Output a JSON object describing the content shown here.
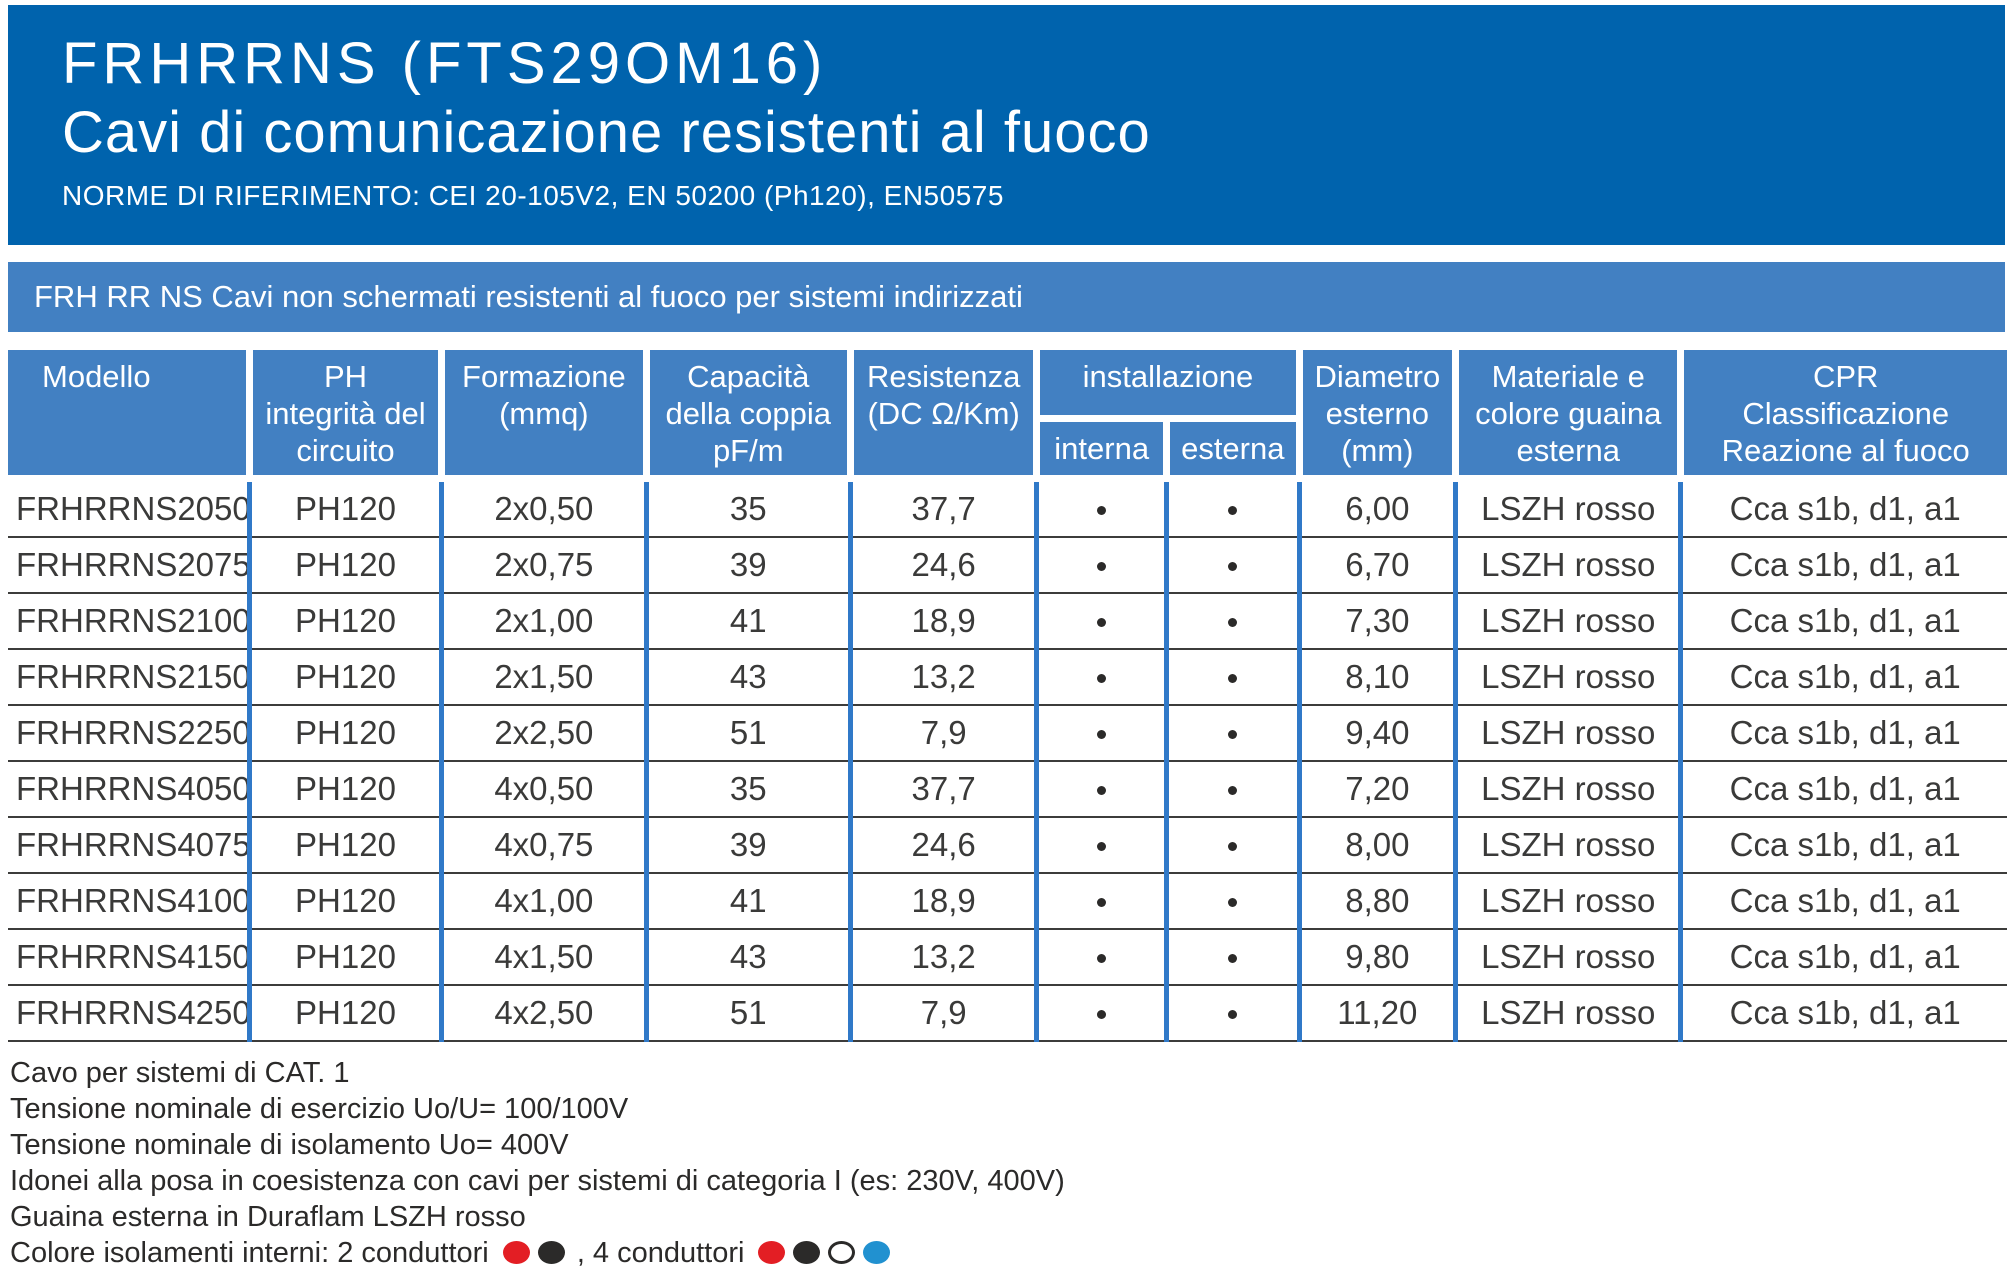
{
  "header": {
    "title": "FRHRRNS (FTS29OM16)",
    "subtitle": "Cavi di comunicazione resistenti al fuoco",
    "norms": "NORME DI RIFERIMENTO: CEI 20-105V2, EN 50200 (Ph120), EN50575"
  },
  "band": {
    "text": "FRH RR NS Cavi non schermati resistenti al fuoco per sistemi indirizzati"
  },
  "table": {
    "headers": {
      "modello": "Modello",
      "ph": "PH\nintegrità del\ncircuito",
      "formazione": "Formazione\n(mmq)",
      "capacita": "Capacità\ndella coppia\npF/m",
      "resistenza": "Resistenza\n(DC Ω/Km)",
      "installazione": "installazione",
      "interna": "interna",
      "esterna": "esterna",
      "diametro": "Diametro\nesterno\n(mm)",
      "materiale": "Materiale e\ncolore guaina\nesterna",
      "cpr": "CPR\nClassificazione\nReazione al fuoco"
    },
    "rows": [
      {
        "modello": "FRHRRNS2050",
        "ph": "PH120",
        "formazione": "2x0,50",
        "capacita": "35",
        "resistenza": "37,7",
        "interna": true,
        "esterna": true,
        "diametro": "6,00",
        "materiale": "LSZH rosso",
        "cpr": "Cca s1b, d1, a1"
      },
      {
        "modello": "FRHRRNS2075",
        "ph": "PH120",
        "formazione": "2x0,75",
        "capacita": "39",
        "resistenza": "24,6",
        "interna": true,
        "esterna": true,
        "diametro": "6,70",
        "materiale": "LSZH rosso",
        "cpr": "Cca s1b, d1, a1"
      },
      {
        "modello": "FRHRRNS2100",
        "ph": "PH120",
        "formazione": "2x1,00",
        "capacita": "41",
        "resistenza": "18,9",
        "interna": true,
        "esterna": true,
        "diametro": "7,30",
        "materiale": "LSZH rosso",
        "cpr": "Cca s1b, d1, a1"
      },
      {
        "modello": "FRHRRNS2150",
        "ph": "PH120",
        "formazione": "2x1,50",
        "capacita": "43",
        "resistenza": "13,2",
        "interna": true,
        "esterna": true,
        "diametro": "8,10",
        "materiale": "LSZH rosso",
        "cpr": "Cca s1b, d1, a1"
      },
      {
        "modello": "FRHRRNS2250",
        "ph": "PH120",
        "formazione": "2x2,50",
        "capacita": "51",
        "resistenza": "7,9",
        "interna": true,
        "esterna": true,
        "diametro": "9,40",
        "materiale": "LSZH rosso",
        "cpr": "Cca s1b, d1, a1"
      },
      {
        "modello": "FRHRRNS4050",
        "ph": "PH120",
        "formazione": "4x0,50",
        "capacita": "35",
        "resistenza": "37,7",
        "interna": true,
        "esterna": true,
        "diametro": "7,20",
        "materiale": "LSZH rosso",
        "cpr": "Cca s1b, d1, a1"
      },
      {
        "modello": "FRHRRNS4075",
        "ph": "PH120",
        "formazione": "4x0,75",
        "capacita": "39",
        "resistenza": "24,6",
        "interna": true,
        "esterna": true,
        "diametro": "8,00",
        "materiale": "LSZH rosso",
        "cpr": "Cca s1b, d1, a1"
      },
      {
        "modello": "FRHRRNS4100",
        "ph": "PH120",
        "formazione": "4x1,00",
        "capacita": "41",
        "resistenza": "18,9",
        "interna": true,
        "esterna": true,
        "diametro": "8,80",
        "materiale": "LSZH rosso",
        "cpr": "Cca s1b, d1, a1"
      },
      {
        "modello": "FRHRRNS4150",
        "ph": "PH120",
        "formazione": "4x1,50",
        "capacita": "43",
        "resistenza": "13,2",
        "interna": true,
        "esterna": true,
        "diametro": "9,80",
        "materiale": "LSZH rosso",
        "cpr": "Cca s1b, d1, a1"
      },
      {
        "modello": "FRHRRNS4250",
        "ph": "PH120",
        "formazione": "4x2,50",
        "capacita": "51",
        "resistenza": "7,9",
        "interna": true,
        "esterna": true,
        "diametro": "11,20",
        "materiale": "LSZH rosso",
        "cpr": "Cca s1b, d1, a1"
      }
    ]
  },
  "notes": {
    "line1": "Cavo per sistemi di CAT. 1",
    "line2": "Tensione nominale di esercizio Uo/U= 100/100V",
    "line3": "Tensione nominale di isolamento Uo= 400V",
    "line4": "Idonei alla posa in coesistenza con cavi per sistemi di categoria I (es: 230V, 400V)",
    "line5": "Guaina esterna in Duraflam LSZH rosso",
    "colors_prefix": "Colore isolamenti interni: 2 conduttori",
    "colors_mid": ", 4 conduttori",
    "dots_2_conduttori": [
      "red",
      "black"
    ],
    "dots_4_conduttori": [
      "red",
      "black",
      "white",
      "blue"
    ]
  },
  "palette": {
    "header_blue": "#0063ad",
    "band_blue": "#4280c2",
    "divider_blue": "#3079c8",
    "row_line": "#3c3c3b",
    "text_dark": "#2b2a29",
    "dot_red": "#e31e24",
    "dot_black": "#2b2a29",
    "dot_white": "#ffffff",
    "dot_blue": "#2191d0"
  }
}
